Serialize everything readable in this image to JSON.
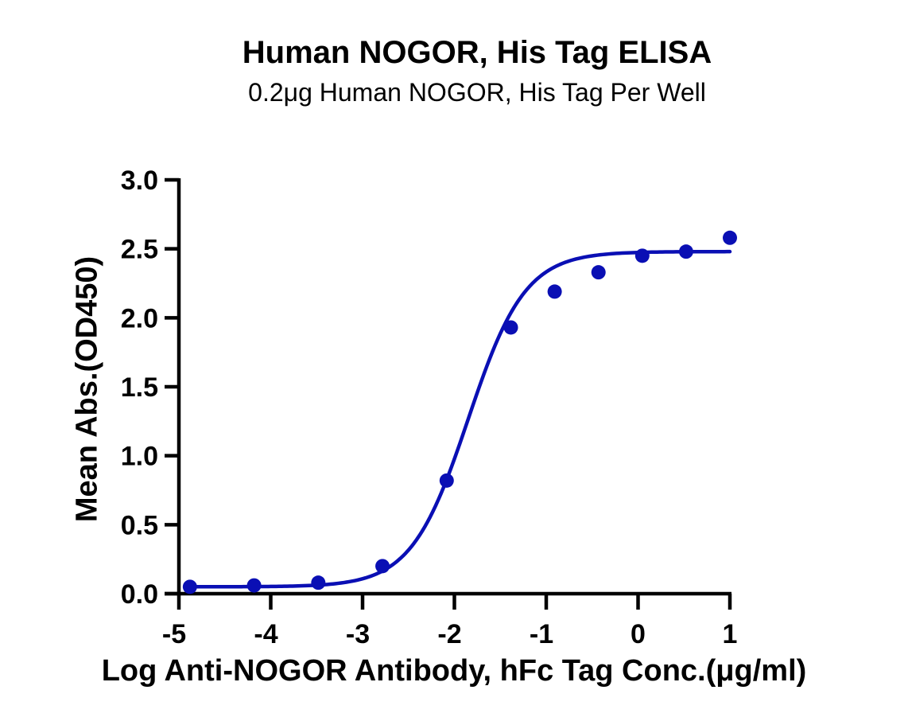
{
  "chart_data": {
    "type": "scatter",
    "title": "Human NOGOR, His Tag ELISA",
    "subtitle": "0.2μg Human NOGOR, His Tag Per Well",
    "xlabel": "Log Anti-NOGOR Antibody, hFc Tag Conc.(μg/ml)",
    "ylabel": "Mean Abs.(OD450)",
    "xlim": [
      -5,
      1
    ],
    "ylim": [
      0,
      3.0
    ],
    "xticks": [
      "-5",
      "-4",
      "-3",
      "-2",
      "-1",
      "0",
      "1"
    ],
    "yticks": [
      "0.0",
      "0.5",
      "1.0",
      "1.5",
      "2.0",
      "2.5",
      "3.0"
    ],
    "grid": false,
    "legend": null,
    "series": [
      {
        "name": "Mean Abs.(OD450)",
        "color": "#0a0fb4",
        "marker": "circle",
        "x": [
          -4.88,
          -4.181,
          -3.482,
          -2.783,
          -2.084,
          -1.385,
          -0.908,
          -0.431,
          0.046,
          0.523,
          1.0
        ],
        "y": [
          0.05,
          0.06,
          0.08,
          0.2,
          0.82,
          1.93,
          2.19,
          2.33,
          2.45,
          2.48,
          2.58
        ]
      }
    ],
    "fit": {
      "type": "4PL sigmoidal curve",
      "color": "#0a0fb4",
      "bottom": 0.05,
      "top": 2.48,
      "logEC50": -1.85,
      "hill": 1.4,
      "x_range": [
        -4.88,
        1.0
      ]
    }
  }
}
